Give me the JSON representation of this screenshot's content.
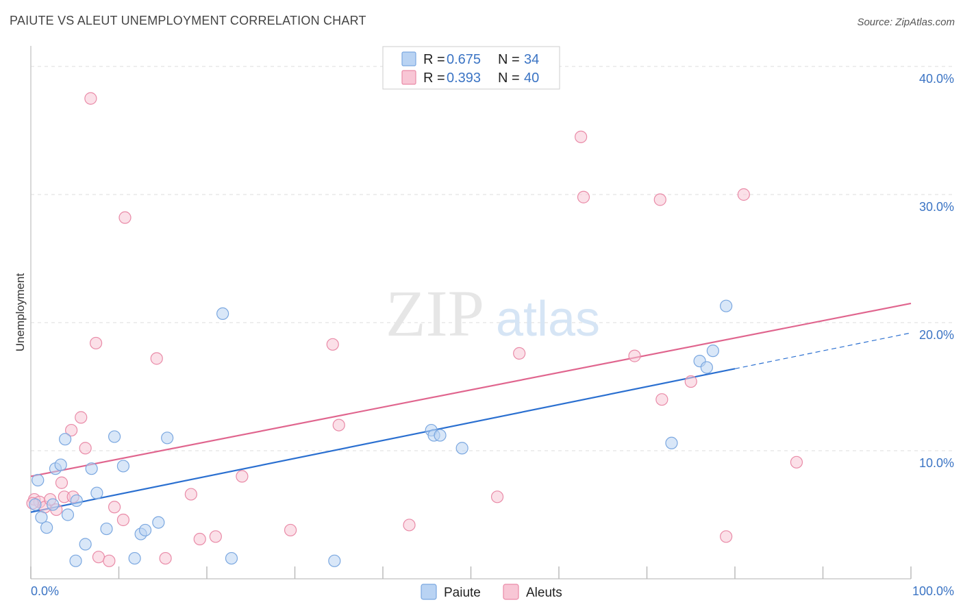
{
  "title": "PAIUTE VS ALEUT UNEMPLOYMENT CORRELATION CHART",
  "source": "Source: ZipAtlas.com",
  "watermark": {
    "zip": "ZIP",
    "atlas": "atlas"
  },
  "colors": {
    "paiute_fill": "#b9d3f3",
    "paiute_stroke": "#7aa7e0",
    "paiute_line": "#2a6fd0",
    "aleut_fill": "#f8c6d5",
    "aleut_stroke": "#e98aa7",
    "aleut_line": "#e0658e",
    "tick_text": "#3b74c4",
    "grid": "#dddddd"
  },
  "legend": {
    "rows": [
      {
        "r_label": "R = ",
        "r_value": "0.675",
        "n_label": "N = ",
        "n_value": "34"
      },
      {
        "r_label": "R = ",
        "r_value": "0.393",
        "n_label": "N = ",
        "n_value": "40"
      }
    ]
  },
  "bottom_legend": [
    "Paiute",
    "Aleuts"
  ],
  "chart_data": {
    "type": "scatter",
    "title": "PAIUTE VS ALEUT UNEMPLOYMENT CORRELATION CHART",
    "xlabel": "",
    "ylabel": "Unemployment",
    "xlim": [
      0,
      100
    ],
    "ylim": [
      0,
      40
    ],
    "x_tick_labels": [
      "0.0%",
      "100.0%"
    ],
    "y_ticks": [
      10,
      20,
      30,
      40
    ],
    "y_tick_labels": [
      "10.0%",
      "20.0%",
      "30.0%",
      "40.0%"
    ],
    "grid": true,
    "legend_position": "top-center",
    "series": [
      {
        "name": "Paiute",
        "r": 0.675,
        "n": 34,
        "trend": {
          "x0": 0,
          "y0": 5.2,
          "x1": 80,
          "y1": 16.4,
          "dashed_to_x": 100,
          "dashed_to_y": 19.2
        },
        "points": [
          [
            0.5,
            5.8
          ],
          [
            0.8,
            7.7
          ],
          [
            1.2,
            4.8
          ],
          [
            1.8,
            4.0
          ],
          [
            2.5,
            5.8
          ],
          [
            2.8,
            8.6
          ],
          [
            3.4,
            8.9
          ],
          [
            3.9,
            10.9
          ],
          [
            4.2,
            5.0
          ],
          [
            5.2,
            6.1
          ],
          [
            6.2,
            2.7
          ],
          [
            5.1,
            1.4
          ],
          [
            6.9,
            8.6
          ],
          [
            7.5,
            6.7
          ],
          [
            8.6,
            3.9
          ],
          [
            9.5,
            11.1
          ],
          [
            10.5,
            8.8
          ],
          [
            11.8,
            1.6
          ],
          [
            12.5,
            3.5
          ],
          [
            13.0,
            3.8
          ],
          [
            14.5,
            4.4
          ],
          [
            15.5,
            11.0
          ],
          [
            21.8,
            20.7
          ],
          [
            22.8,
            1.6
          ],
          [
            34.5,
            1.4
          ],
          [
            45.5,
            11.6
          ],
          [
            45.8,
            11.2
          ],
          [
            46.5,
            11.2
          ],
          [
            49.0,
            10.2
          ],
          [
            72.8,
            10.6
          ],
          [
            76.0,
            17.0
          ],
          [
            76.8,
            16.5
          ],
          [
            77.5,
            17.8
          ],
          [
            79.0,
            21.3
          ]
        ]
      },
      {
        "name": "Aleuts",
        "r": 0.393,
        "n": 40,
        "trend": {
          "x0": 0,
          "y0": 8.0,
          "x1": 100,
          "y1": 21.5
        },
        "points": [
          [
            0.4,
            6.2
          ],
          [
            1.0,
            6.0
          ],
          [
            1.6,
            5.6
          ],
          [
            2.2,
            6.2
          ],
          [
            2.9,
            5.4
          ],
          [
            3.5,
            7.5
          ],
          [
            3.8,
            6.4
          ],
          [
            4.6,
            11.6
          ],
          [
            4.8,
            6.4
          ],
          [
            5.7,
            12.6
          ],
          [
            6.2,
            10.2
          ],
          [
            6.8,
            37.5
          ],
          [
            7.4,
            18.4
          ],
          [
            7.7,
            1.7
          ],
          [
            8.9,
            1.4
          ],
          [
            9.5,
            5.6
          ],
          [
            10.5,
            4.6
          ],
          [
            10.7,
            28.2
          ],
          [
            14.3,
            17.2
          ],
          [
            15.3,
            1.6
          ],
          [
            18.2,
            6.6
          ],
          [
            19.2,
            3.1
          ],
          [
            21.0,
            3.3
          ],
          [
            24.0,
            8.0
          ],
          [
            29.5,
            3.8
          ],
          [
            34.3,
            18.3
          ],
          [
            35.0,
            12.0
          ],
          [
            43.0,
            4.2
          ],
          [
            53.0,
            6.4
          ],
          [
            55.5,
            17.6
          ],
          [
            62.5,
            34.5
          ],
          [
            62.8,
            29.8
          ],
          [
            68.6,
            17.4
          ],
          [
            71.5,
            29.6
          ],
          [
            71.7,
            14.0
          ],
          [
            75.0,
            15.4
          ],
          [
            79.0,
            3.3
          ],
          [
            81.0,
            30.0
          ],
          [
            87.0,
            9.1
          ],
          [
            0.2,
            5.9
          ]
        ]
      }
    ]
  }
}
